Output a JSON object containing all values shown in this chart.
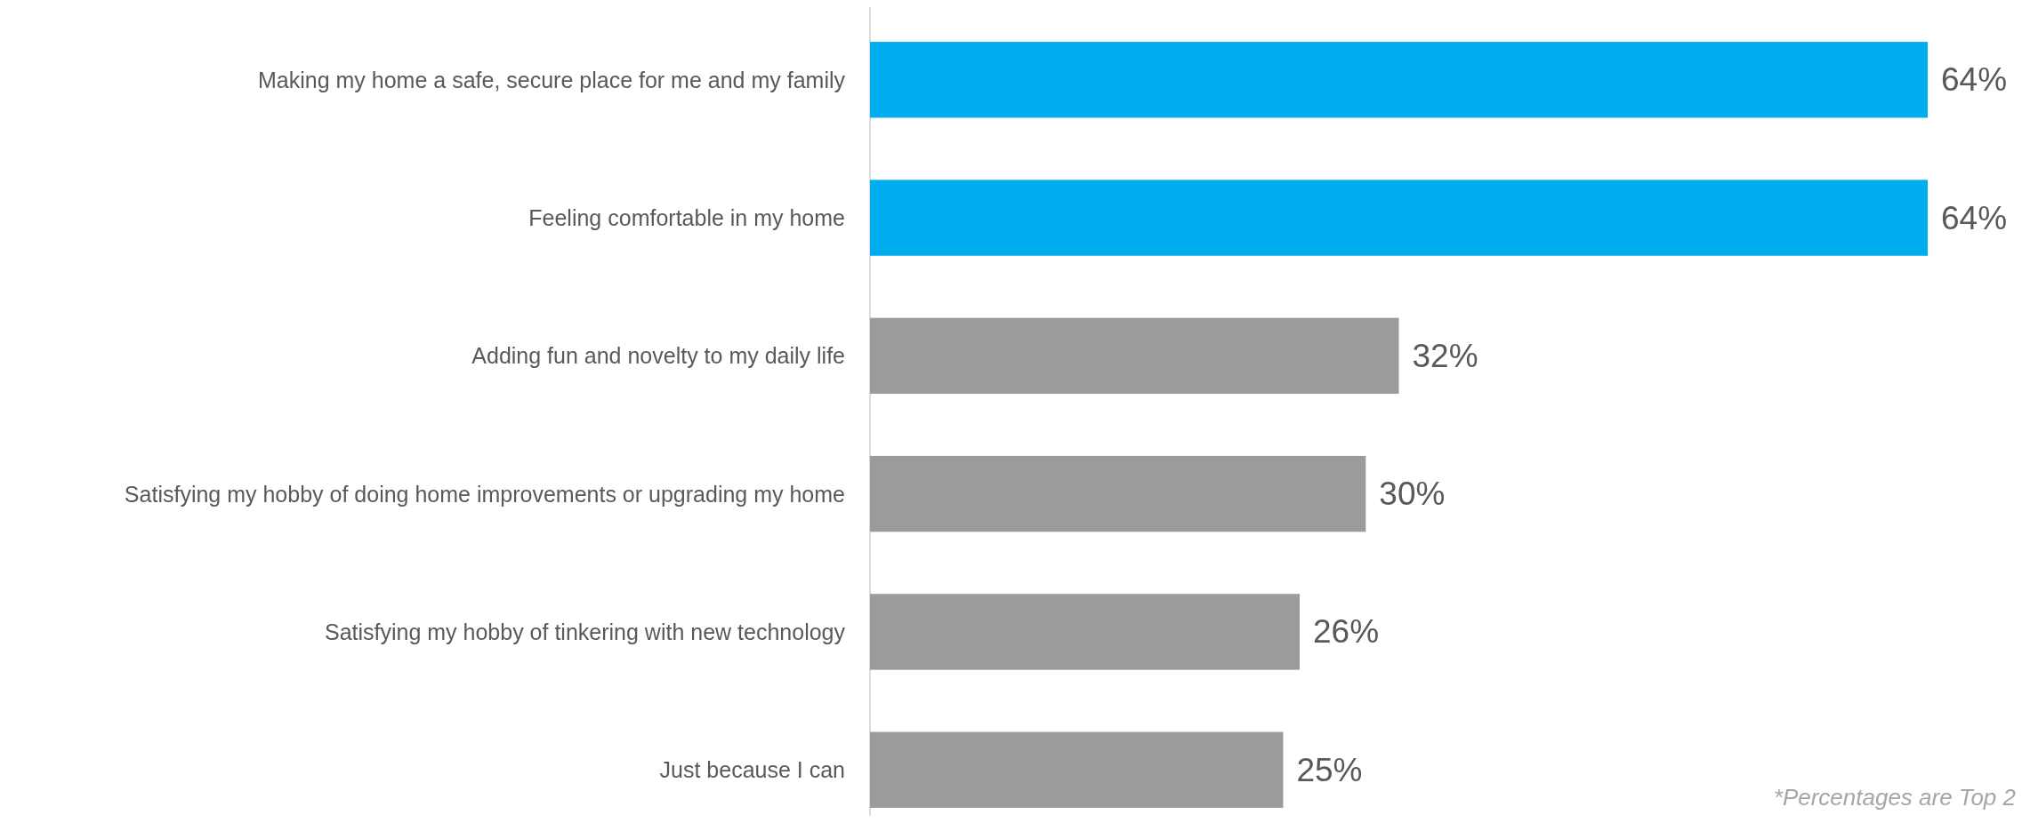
{
  "chart_data": {
    "type": "bar",
    "orientation": "horizontal",
    "categories": [
      "Making my home a safe, secure place for me and my family",
      "Feeling comfortable in my home",
      "Adding fun and novelty to my daily life",
      "Satisfying my hobby of doing home improvements or upgrading my home",
      "Satisfying my hobby of tinkering with new technology",
      "Just because I can"
    ],
    "values": [
      64,
      64,
      32,
      30,
      26,
      25
    ],
    "colors": [
      "#00aeef",
      "#00aeef",
      "#9b9b9e",
      "#9b9b9e",
      "#9b9b9e",
      "#9b9b9e"
    ],
    "value_labels": [
      "64%",
      "64%",
      "32%",
      "30%",
      "26%",
      "25%"
    ],
    "annotations": [
      "*Percentages are Top 2"
    ]
  }
}
